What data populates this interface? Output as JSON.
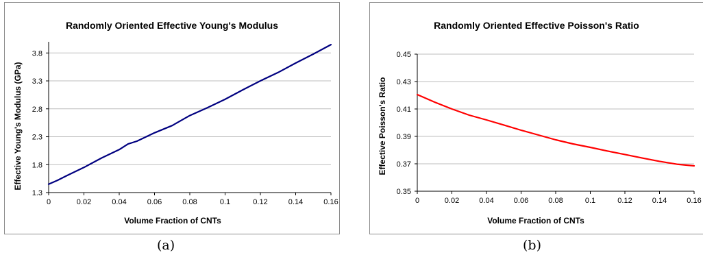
{
  "chart_data": [
    {
      "type": "line",
      "title": "Randomly Oriented Effective Young's Modulus",
      "xlabel": "Volume Fraction of CNTs",
      "ylabel": "Effective Young's Modulus (GPa)",
      "xlim": [
        0,
        0.16
      ],
      "ylim": [
        1.3,
        4.0
      ],
      "xticks": [
        0,
        0.02,
        0.04,
        0.06,
        0.08,
        0.1,
        0.12,
        0.14,
        0.16
      ],
      "xtick_labels": [
        "0",
        "0.02",
        "0.04",
        "0.06",
        "0.08",
        "0.1",
        "0.12",
        "0.14",
        "0.16"
      ],
      "yticks": [
        1.3,
        1.8,
        2.3,
        2.8,
        3.3,
        3.8
      ],
      "ytick_labels": [
        "1.3",
        "1.8",
        "2.3",
        "2.8",
        "3.3",
        "3.8"
      ],
      "grid": "horizontal",
      "color": "#000080",
      "series": [
        {
          "x": [
            0,
            0.005,
            0.01,
            0.02,
            0.03,
            0.04,
            0.045,
            0.05,
            0.06,
            0.07,
            0.08,
            0.09,
            0.1,
            0.11,
            0.12,
            0.13,
            0.14,
            0.15,
            0.16
          ],
          "values": [
            1.45,
            1.52,
            1.6,
            1.75,
            1.92,
            2.07,
            2.17,
            2.22,
            2.37,
            2.5,
            2.68,
            2.82,
            2.97,
            3.14,
            3.3,
            3.45,
            3.62,
            3.78,
            3.95
          ]
        }
      ]
    },
    {
      "type": "line",
      "title": "Randomly Oriented Effective Poisson's Ratio",
      "xlabel": "Volume Fraction of CNTs",
      "ylabel": "Effective Poisson's Ratio",
      "xlim": [
        0,
        0.16
      ],
      "ylim": [
        0.35,
        0.45
      ],
      "xticks": [
        0,
        0.02,
        0.04,
        0.06,
        0.08,
        0.1,
        0.12,
        0.14,
        0.16
      ],
      "xtick_labels": [
        "0",
        "0.02",
        "0.04",
        "0.06",
        "0.08",
        "0.1",
        "0.12",
        "0.14",
        "0.16"
      ],
      "yticks": [
        0.35,
        0.37,
        0.39,
        0.41,
        0.43,
        0.45
      ],
      "ytick_labels": [
        "0.35",
        "0.37",
        "0.39",
        "0.41",
        "0.43",
        "0.45"
      ],
      "grid": "horizontal",
      "color": "#ff0000",
      "series": [
        {
          "x": [
            0,
            0.01,
            0.02,
            0.03,
            0.04,
            0.05,
            0.06,
            0.07,
            0.08,
            0.09,
            0.1,
            0.11,
            0.12,
            0.13,
            0.14,
            0.15,
            0.16
          ],
          "values": [
            0.4205,
            0.415,
            0.41,
            0.4055,
            0.402,
            0.3983,
            0.3945,
            0.391,
            0.3875,
            0.3845,
            0.382,
            0.3793,
            0.3768,
            0.3742,
            0.3718,
            0.3697,
            0.3685
          ]
        }
      ]
    }
  ],
  "captions": [
    "(a)",
    "(b)"
  ]
}
